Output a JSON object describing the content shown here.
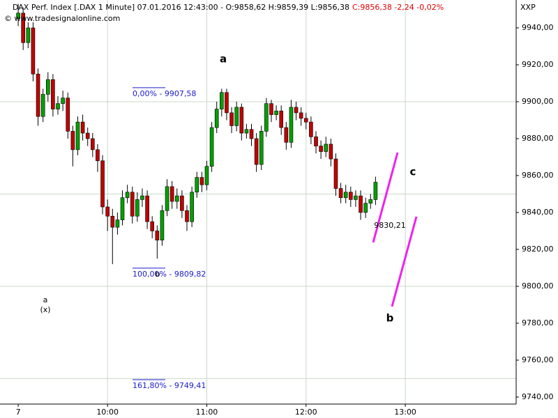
{
  "chart_data": {
    "type": "candlestick",
    "title": "DAX Perf. Index [.DAX  1 Minute] 07.01.2016 12:43:00 - O:9858,62 H:9859,39 L:9856,38",
    "change": "C:9856,38 -2,24 -0,02%",
    "source": "© www.tradesignalonline.com",
    "symbol": "XXP",
    "up_color": "#00a000",
    "down_color": "#c00000",
    "x": [
      "09:06",
      "09:09",
      "09:12",
      "09:15",
      "09:18",
      "09:21",
      "09:24",
      "09:27",
      "09:30",
      "09:33",
      "09:36",
      "09:39",
      "09:42",
      "09:45",
      "09:48",
      "09:51",
      "09:54",
      "09:57",
      "10:00",
      "10:03",
      "10:06",
      "10:09",
      "10:12",
      "10:15",
      "10:18",
      "10:21",
      "10:24",
      "10:27",
      "10:30",
      "10:33",
      "10:36",
      "10:39",
      "10:42",
      "10:45",
      "10:48",
      "10:51",
      "10:54",
      "10:57",
      "11:00",
      "11:03",
      "11:06",
      "11:09",
      "11:12",
      "11:15",
      "11:18",
      "11:21",
      "11:24",
      "11:27",
      "11:30",
      "11:33",
      "11:36",
      "11:39",
      "11:42",
      "11:45",
      "11:48",
      "11:51",
      "11:54",
      "11:57",
      "12:00",
      "12:03",
      "12:06",
      "12:09",
      "12:12",
      "12:15",
      "12:18",
      "12:21",
      "12:24",
      "12:27",
      "12:30",
      "12:33",
      "12:36",
      "12:39",
      "12:42"
    ],
    "open": [
      9945,
      9948,
      9932,
      9940,
      9915,
      9892,
      9904,
      9912,
      9896,
      9899,
      9902,
      9884,
      9874,
      9889,
      9883,
      9880,
      9874,
      9868,
      9843,
      9838,
      9832,
      9836,
      9848,
      9851,
      9838,
      9847,
      9849,
      9835,
      9830,
      9825,
      9841,
      9854,
      9846,
      9849,
      9841,
      9835,
      9851,
      9859,
      9855,
      9865,
      9886,
      9896,
      9905,
      9894,
      9887,
      9897,
      9883,
      9885,
      9880,
      9866,
      9884,
      9899,
      9893,
      9895,
      9886,
      9878,
      9897,
      9894,
      9891,
      9889,
      9881,
      9876,
      9873,
      9877,
      9869,
      9853,
      9848,
      9851,
      9847,
      9849,
      9840,
      9845,
      9847
    ],
    "high": [
      9953,
      9951,
      9943,
      9943,
      9918,
      9907,
      9916,
      9915,
      9903,
      9906,
      9905,
      9887,
      9892,
      9893,
      9886,
      9883,
      9877,
      9871,
      9847,
      9842,
      9840,
      9852,
      9855,
      9854,
      9851,
      9853,
      9852,
      9838,
      9833,
      9844,
      9858,
      9857,
      9853,
      9852,
      9844,
      9854,
      9862,
      9862,
      9868,
      9889,
      9900,
      9907,
      9907,
      9897,
      9900,
      9899,
      9888,
      9888,
      9883,
      9887,
      9902,
      9901,
      9898,
      9898,
      9889,
      9901,
      9900,
      9897,
      9894,
      9892,
      9884,
      9879,
      9881,
      9880,
      9872,
      9856,
      9855,
      9854,
      9852,
      9852,
      9848,
      9850,
      9859.39
    ],
    "low": [
      9941,
      9928,
      9929,
      9911,
      9887,
      9889,
      9900,
      9892,
      9893,
      9895,
      9880,
      9865,
      9871,
      9879,
      9876,
      9870,
      9862,
      9839,
      9830,
      9812,
      9828,
      9833,
      9845,
      9834,
      9835,
      9843,
      9831,
      9826,
      9815,
      9822,
      9838,
      9842,
      9842,
      9837,
      9830,
      9832,
      9848,
      9851,
      9852,
      9862,
      9883,
      9892,
      9890,
      9883,
      9884,
      9879,
      9880,
      9876,
      9862,
      9863,
      9881,
      9889,
      9890,
      9882,
      9874,
      9875,
      9890,
      9887,
      9885,
      9877,
      9872,
      9869,
      9870,
      9865,
      9849,
      9845,
      9845,
      9843,
      9843,
      9836,
      9837,
      9842,
      9844
    ],
    "close": [
      9948,
      9932,
      9940,
      9915,
      9892,
      9904,
      9912,
      9896,
      9899,
      9902,
      9884,
      9874,
      9889,
      9883,
      9880,
      9874,
      9868,
      9843,
      9838,
      9832,
      9836,
      9848,
      9851,
      9838,
      9847,
      9849,
      9835,
      9830,
      9825,
      9841,
      9854,
      9846,
      9849,
      9841,
      9835,
      9851,
      9859,
      9855,
      9865,
      9886,
      9896,
      9905,
      9894,
      9887,
      9897,
      9883,
      9885,
      9880,
      9866,
      9884,
      9899,
      9893,
      9895,
      9886,
      9878,
      9897,
      9894,
      9891,
      9889,
      9881,
      9876,
      9873,
      9877,
      9869,
      9853,
      9848,
      9851,
      9847,
      9849,
      9840,
      9845,
      9847,
      9856.38
    ],
    "xlim": [
      "08:55",
      "14:07"
    ],
    "xticks": [
      {
        "value": "09:06",
        "label": "7"
      },
      "10:00",
      "11:00",
      "12:00",
      "13:00"
    ],
    "xgrid": [
      "10:00",
      "11:00",
      "12:00",
      "13:00"
    ],
    "ylim": [
      9736.2,
      9955.1
    ],
    "yticks": [
      {
        "value": 9740,
        "label": "9740,00"
      },
      {
        "value": 9760,
        "label": "9760,00"
      },
      {
        "value": 9780,
        "label": "9780,00"
      },
      {
        "value": 9800,
        "label": "9800,00"
      },
      {
        "value": 9820,
        "label": "9820,00"
      },
      {
        "value": 9840,
        "label": "9840,00"
      },
      {
        "value": 9860,
        "label": "9860,00"
      },
      {
        "value": 9880,
        "label": "9880,00"
      },
      {
        "value": 9900,
        "label": "9900,00"
      },
      {
        "value": 9920,
        "label": "9920,00"
      },
      {
        "value": 9940,
        "label": "9940,00"
      }
    ],
    "ygrid": [
      9750,
      9800,
      9850,
      9900
    ],
    "fib_levels": [
      {
        "label": "0,00% - 9907,58",
        "value": 9907.58
      },
      {
        "label": "100,00% - 9809,82",
        "value": 9809.82
      },
      {
        "label": "161,80% - 9749,41",
        "value": 9749.41
      }
    ],
    "annotations": [
      "a",
      "c",
      "b",
      "a",
      "(x)",
      "b",
      "9830,21"
    ]
  }
}
